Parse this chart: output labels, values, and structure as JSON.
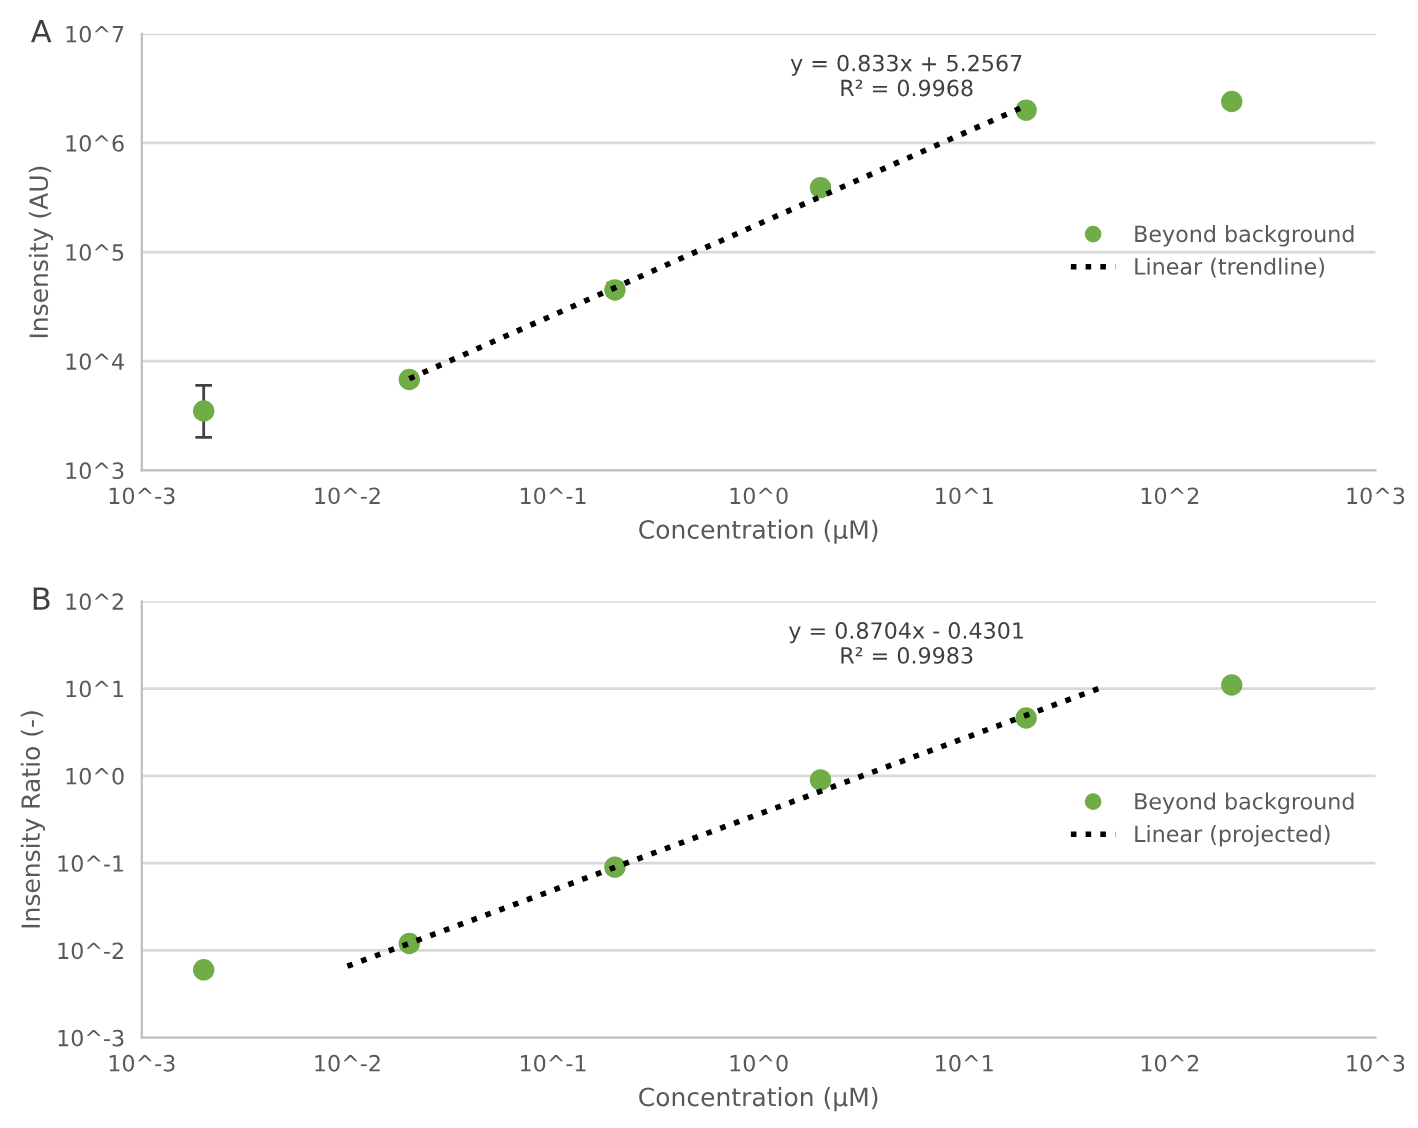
{
  "chart_data": [
    {
      "type": "scatter",
      "title": "A",
      "xlabel": "Concentration (µM)",
      "ylabel": "Insensity (AU)",
      "log": "xy",
      "grid": "y",
      "legend": "right",
      "marker": "circle",
      "xlim": [
        0.001,
        1000
      ],
      "ylim": [
        1000,
        10000000
      ],
      "xticks": [
        {
          "value": 0.001,
          "label": "10^-3"
        },
        {
          "value": 0.01,
          "label": "10^-2"
        },
        {
          "value": 0.1,
          "label": "10^-1"
        },
        {
          "value": 1,
          "label": "10^0"
        },
        {
          "value": 10,
          "label": "10^1"
        },
        {
          "value": 100,
          "label": "10^2"
        },
        {
          "value": 1000,
          "label": "10^3"
        }
      ],
      "yticks": [
        {
          "value": 1000,
          "label": "10^3"
        },
        {
          "value": 10000,
          "label": "10^4"
        },
        {
          "value": 100000,
          "label": "10^5"
        },
        {
          "value": 1000000,
          "label": "10^6"
        },
        {
          "value": 10000000,
          "label": "10^7"
        }
      ],
      "series": [
        {
          "name": "Beyond background",
          "color": "#70ad47",
          "x": [
            0.002,
            0.02,
            0.2,
            2,
            20,
            200
          ],
          "values": [
            3500,
            6800,
            45000,
            390000,
            2000000,
            2400000
          ],
          "errors": [
            [
              2000,
              6000
            ],
            [
              6200,
              7600
            ],
            [
              40000,
              52000
            ],
            null,
            null,
            null
          ]
        },
        {
          "name": "Linear (trendline)",
          "type": "line",
          "color": "#000000",
          "line_style": "dotted",
          "marker": "none",
          "x": [
            0.02,
            20
          ],
          "values": [
            6900,
            2200000
          ]
        }
      ],
      "annotations": [
        "y = 0.833x + 5.2567\nR² = 0.9968"
      ]
    },
    {
      "type": "scatter",
      "title": "B",
      "xlabel": "Concentration (µM)",
      "ylabel": "Insensity Ratio (-)",
      "log": "xy",
      "grid": "y",
      "legend": "right",
      "marker": "circle",
      "xlim": [
        0.001,
        1000
      ],
      "ylim": [
        0.001,
        100
      ],
      "xticks": [
        {
          "value": 0.001,
          "label": "10^-3"
        },
        {
          "value": 0.01,
          "label": "10^-2"
        },
        {
          "value": 0.1,
          "label": "10^-1"
        },
        {
          "value": 1,
          "label": "10^0"
        },
        {
          "value": 10,
          "label": "10^1"
        },
        {
          "value": 100,
          "label": "10^2"
        },
        {
          "value": 1000,
          "label": "10^3"
        }
      ],
      "yticks": [
        {
          "value": 0.001,
          "label": "10^-3"
        },
        {
          "value": 0.01,
          "label": "10^-2"
        },
        {
          "value": 0.1,
          "label": "10^-1"
        },
        {
          "value": 1,
          "label": "10^0"
        },
        {
          "value": 10,
          "label": "10^1"
        },
        {
          "value": 100,
          "label": "10^2"
        }
      ],
      "series": [
        {
          "name": "Beyond background",
          "color": "#70ad47",
          "x": [
            0.002,
            0.02,
            0.2,
            2,
            20,
            200
          ],
          "values": [
            0.006,
            0.012,
            0.09,
            0.9,
            4.6,
            11
          ]
        },
        {
          "name": "Linear (projected)",
          "type": "line",
          "color": "#000000",
          "line_style": "dotted",
          "marker": "none",
          "x": [
            0.01,
            45
          ],
          "values": [
            0.0066,
            10
          ]
        }
      ],
      "annotations": [
        "y = 0.8704x - 0.4301\nR² = 0.9983"
      ]
    }
  ]
}
